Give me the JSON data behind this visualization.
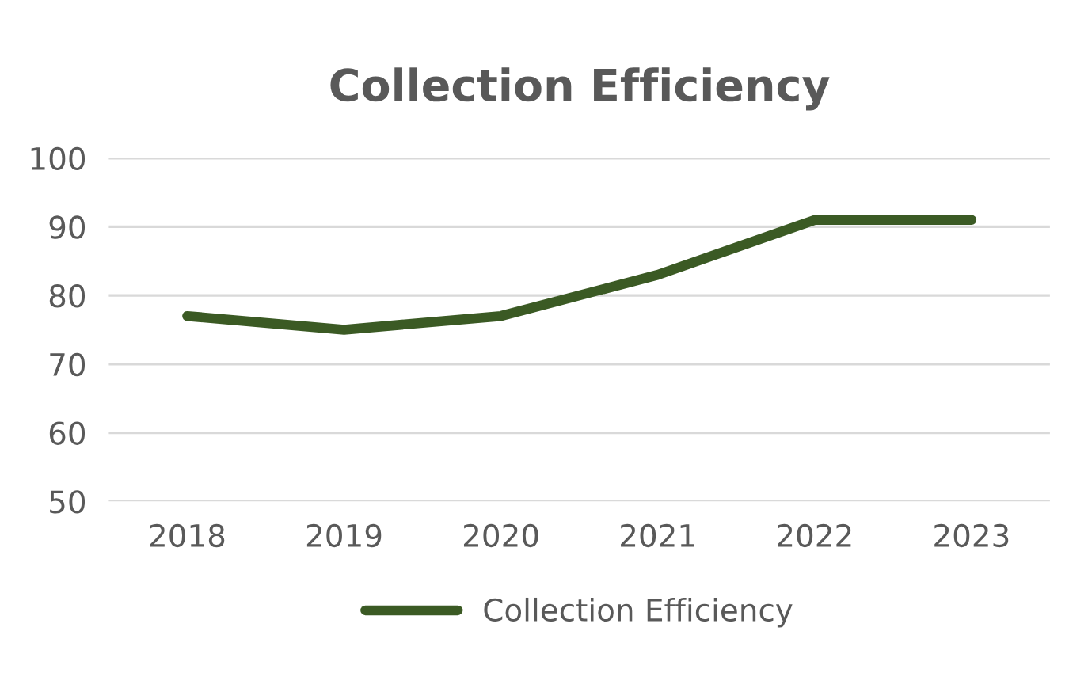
{
  "chart_data": {
    "type": "line",
    "title": "Collection Efficiency",
    "categories": [
      "2018",
      "2019",
      "2020",
      "2021",
      "2022",
      "2023"
    ],
    "series": [
      {
        "name": "Collection Efficiency",
        "color": "#3b5a24",
        "values": [
          77,
          75,
          77,
          83,
          91,
          91
        ]
      }
    ],
    "ylim": [
      50,
      100
    ],
    "yticks": [
      50,
      60,
      70,
      80,
      90,
      100
    ],
    "grid": "y",
    "legend": "bottom",
    "marker": "none",
    "line_style": "solid"
  }
}
